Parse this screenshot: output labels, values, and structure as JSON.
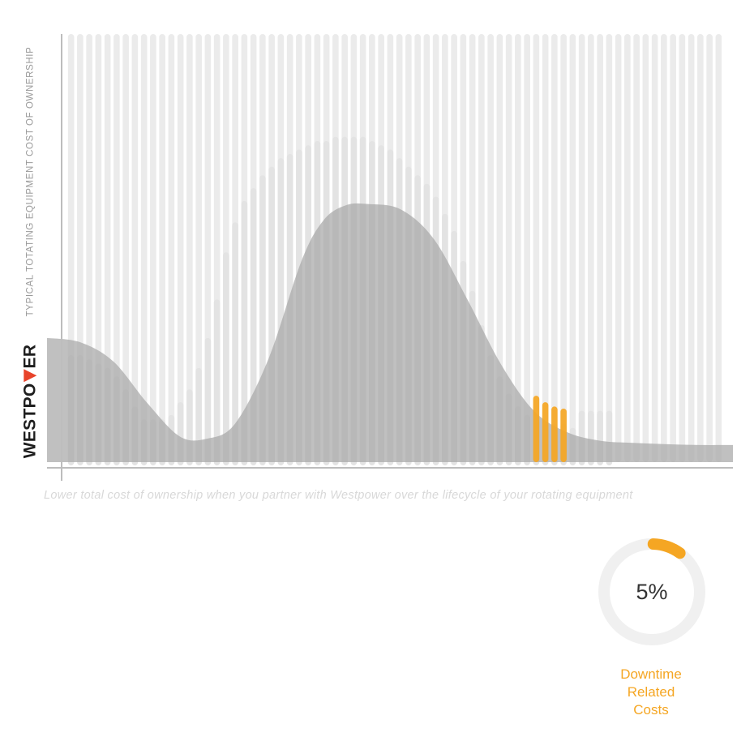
{
  "colors": {
    "bar": "#ebebeb",
    "highlight": "#f5a623",
    "curve": "#a8a8a8",
    "axis": "#bdbdbd",
    "ring": "#f0f0f0"
  },
  "brand": {
    "logo_pre": "WESTPO",
    "logo_post": "ER"
  },
  "chart_data": {
    "type": "bar",
    "ylabel": "TYPICAL TOTATING EQUIPMENT COST OF OWNERSHIP",
    "caption": "Lower total cost of ownership when you partner with Westpower over the lifecycle of your rotating equipment",
    "ylim": [
      0,
      100
    ],
    "grid": false,
    "background_columns": 72,
    "values": [
      25,
      25,
      24,
      23,
      22,
      20,
      17,
      13,
      10,
      10,
      10,
      11,
      14,
      17,
      22,
      29,
      38,
      49,
      56,
      61,
      64,
      67,
      69,
      71,
      72,
      73,
      74,
      75,
      75,
      76,
      76,
      76,
      76,
      75,
      74,
      73,
      71,
      69,
      67,
      65,
      62,
      58,
      54,
      47,
      40,
      32,
      25,
      20,
      16,
      13,
      11,
      10,
      9,
      9,
      9,
      8,
      12,
      12,
      12,
      12
    ],
    "highlight_index": [
      51,
      52,
      53,
      54
    ],
    "highlight_values": [
      15.5,
      14,
      13,
      12.5
    ],
    "curve": {
      "x": [
        0,
        3,
        6,
        9,
        12,
        14.5,
        17,
        20,
        23,
        25,
        27,
        29,
        32,
        35,
        38,
        41,
        44,
        47,
        50,
        53,
        56,
        59,
        62
      ],
      "y": [
        29,
        28,
        23.5,
        14,
        6,
        5.5,
        9,
        24,
        47,
        56.5,
        60,
        60.3,
        59,
        52,
        38,
        23,
        12,
        7,
        5,
        4.5,
        4.2,
        4,
        4
      ]
    },
    "gauge": {
      "value": 5,
      "value_label": "5%",
      "label_lines": [
        "Downtime",
        "Related",
        "Costs"
      ]
    }
  }
}
